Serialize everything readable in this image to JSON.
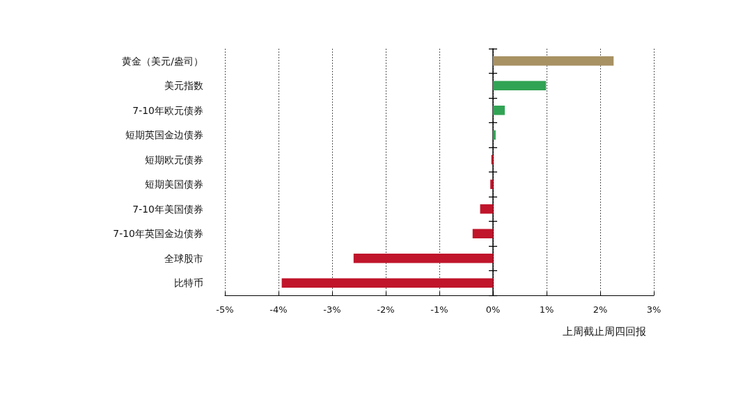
{
  "chart_data": {
    "type": "bar",
    "orientation": "horizontal",
    "xlabel": "上周截止周四回报",
    "categories": [
      "黄金（美元/盎司）",
      "美元指数",
      "7-10年欧元债券",
      "短期英国金边债券",
      "短期欧元债券",
      "短期美国债券",
      "7-10年美国债券",
      "7-10年英国金边债券",
      "全球股市",
      "比特币"
    ],
    "values": [
      2.25,
      0.99,
      0.22,
      0.05,
      -0.03,
      -0.05,
      -0.24,
      -0.38,
      -2.6,
      -3.94
    ],
    "colors": [
      "#a89163",
      "#31a354",
      "#31a354",
      "#31a354",
      "#c0152b",
      "#c0152b",
      "#c0152b",
      "#c0152b",
      "#c0152b",
      "#c0152b"
    ],
    "xlim": [
      -5,
      3
    ],
    "xticks": [
      {
        "value": -5,
        "label": "-5%"
      },
      {
        "value": -4,
        "label": "-4%"
      },
      {
        "value": -3,
        "label": "-3%"
      },
      {
        "value": -2,
        "label": "-2%"
      },
      {
        "value": -1,
        "label": "-1%"
      },
      {
        "value": 0,
        "label": "0%"
      },
      {
        "value": 1,
        "label": "1%"
      },
      {
        "value": 2,
        "label": "2%"
      },
      {
        "value": 3,
        "label": "3%"
      }
    ],
    "grid": "x"
  }
}
